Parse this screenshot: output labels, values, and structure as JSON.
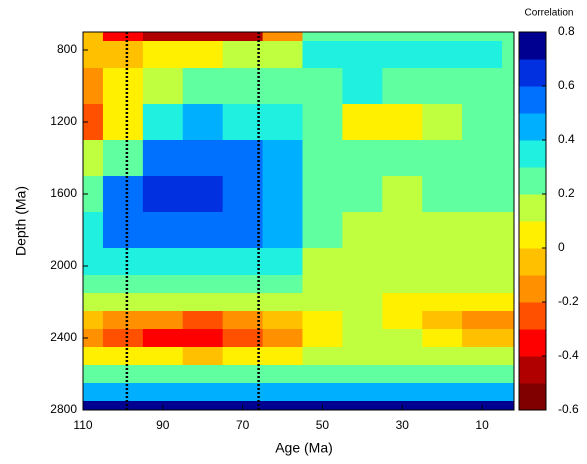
{
  "chart_data": {
    "type": "contour",
    "xlabel": "Age (Ma)",
    "ylabel": "Depth (Ma)",
    "colorbar_label": "Correlation",
    "x": [
      110,
      100,
      90,
      80,
      70,
      60,
      50,
      40,
      30,
      20,
      10,
      0
    ],
    "y": [
      700,
      800,
      1000,
      1200,
      1400,
      1600,
      1800,
      2000,
      2100,
      2200,
      2300,
      2400,
      2500,
      2600,
      2700,
      2800
    ],
    "z": [
      [
        -0.1,
        -0.4,
        -0.5,
        -0.5,
        -0.5,
        -0.2,
        0.25,
        0.25,
        0.25,
        0.25,
        0.25,
        0.25
      ],
      [
        -0.1,
        -0.1,
        0.0,
        0.05,
        0.1,
        0.15,
        0.3,
        0.35,
        0.35,
        0.35,
        0.3,
        0.25
      ],
      [
        -0.2,
        0.0,
        0.15,
        0.2,
        0.2,
        0.2,
        0.2,
        0.3,
        0.25,
        0.25,
        0.25,
        0.25
      ],
      [
        -0.25,
        0.05,
        0.35,
        0.4,
        0.35,
        0.3,
        0.2,
        0.05,
        0.05,
        0.15,
        0.2,
        0.2
      ],
      [
        0.1,
        0.2,
        0.5,
        0.55,
        0.5,
        0.4,
        0.25,
        0.2,
        0.2,
        0.2,
        0.25,
        0.25
      ],
      [
        0.2,
        0.5,
        0.65,
        0.6,
        0.55,
        0.45,
        0.25,
        0.2,
        0.15,
        0.2,
        0.2,
        0.2
      ],
      [
        0.3,
        0.5,
        0.5,
        0.5,
        0.5,
        0.4,
        0.2,
        0.15,
        0.1,
        0.1,
        0.15,
        0.15
      ],
      [
        0.3,
        0.3,
        0.35,
        0.35,
        0.35,
        0.35,
        0.15,
        0.1,
        0.15,
        0.1,
        0.1,
        0.1
      ],
      [
        0.25,
        0.25,
        0.25,
        0.25,
        0.2,
        0.2,
        0.15,
        0.1,
        0.1,
        0.1,
        0.1,
        0.1
      ],
      [
        0.1,
        0.1,
        0.1,
        0.1,
        0.1,
        0.1,
        0.1,
        0.1,
        0.05,
        0.05,
        0.0,
        0.0
      ],
      [
        -0.1,
        -0.15,
        -0.2,
        -0.25,
        -0.2,
        -0.1,
        0.05,
        0.1,
        0.05,
        -0.05,
        -0.15,
        -0.2
      ],
      [
        -0.15,
        -0.25,
        -0.35,
        -0.4,
        -0.3,
        -0.15,
        0.05,
        0.1,
        0.1,
        0.05,
        -0.1,
        -0.1
      ],
      [
        0.05,
        0.0,
        0.0,
        -0.05,
        0.0,
        0.05,
        0.1,
        0.15,
        0.15,
        0.15,
        0.1,
        0.1
      ],
      [
        0.25,
        0.25,
        0.2,
        0.2,
        0.2,
        0.25,
        0.25,
        0.25,
        0.25,
        0.25,
        0.25,
        0.25
      ],
      [
        0.45,
        0.45,
        0.45,
        0.45,
        0.45,
        0.45,
        0.45,
        0.45,
        0.45,
        0.45,
        0.45,
        0.45
      ],
      [
        0.75,
        0.75,
        0.75,
        0.75,
        0.75,
        0.75,
        0.75,
        0.75,
        0.75,
        0.75,
        0.75,
        0.75
      ]
    ],
    "xlim": [
      110,
      2
    ],
    "xticks": [
      110,
      90,
      70,
      50,
      30,
      10
    ],
    "ylim": [
      2800,
      700
    ],
    "yticks": [
      800,
      1200,
      1600,
      2000,
      2400,
      2800
    ],
    "levels": [
      -0.6,
      -0.5,
      -0.4,
      -0.3,
      -0.2,
      -0.1,
      0,
      0.1,
      0.2,
      0.3,
      0.4,
      0.5,
      0.6,
      0.7,
      0.8
    ],
    "colors": [
      "#800000",
      "#b00000",
      "#ff0000",
      "#ff5000",
      "#ff9000",
      "#ffc000",
      "#fff000",
      "#c0ff40",
      "#60ffa0",
      "#20f0e0",
      "#00b0ff",
      "#0070ff",
      "#0030e0",
      "#000090"
    ],
    "clim": [
      -0.6,
      0.8
    ],
    "cticks": [
      -0.6,
      -0.4,
      -0.2,
      0,
      0.2,
      0.4,
      0.6,
      0.8
    ],
    "vlines": [
      99,
      66
    ]
  }
}
